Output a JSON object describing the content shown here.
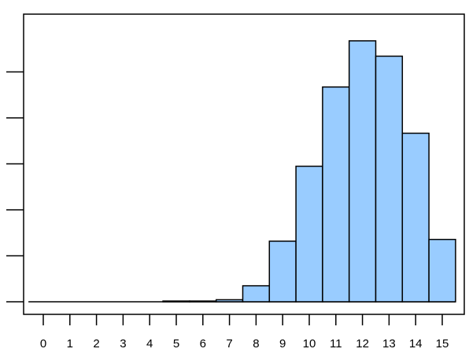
{
  "chart_data": {
    "type": "bar",
    "title": "",
    "xlabel": "",
    "ylabel": "",
    "categories": [
      "0",
      "1",
      "2",
      "3",
      "4",
      "5",
      "6",
      "7",
      "8",
      "9",
      "10",
      "11",
      "12",
      "13",
      "14",
      "15"
    ],
    "values": [
      0,
      0,
      0,
      0,
      0,
      0.0008,
      0.0008,
      0.0022,
      0.0174,
      0.0659,
      0.1474,
      0.2336,
      0.2838,
      0.2671,
      0.1833,
      0.0678
    ],
    "ylim": [
      0,
      0.3
    ],
    "yticks": [
      0,
      0.05,
      0.1,
      0.15,
      0.2,
      0.25
    ],
    "ytick_labels_shown": false,
    "grid": false,
    "bar_color": "#99ccff",
    "edge_color": "#000000"
  }
}
